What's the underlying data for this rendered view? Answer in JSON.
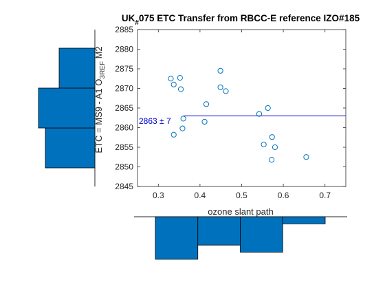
{
  "chart_data": {
    "type": "scatter",
    "title": "UK_#075 ETC Transfer from RBCC-E reference IZO#185",
    "title_parts": {
      "before_sub": "UK",
      "sub": "#",
      "after_sub": "075 ETC Transfer from RBCC-E reference IZO#185"
    },
    "xlabel": "ozone slant path",
    "ylabel": "ETC = MS9 - A1 O3REF M2",
    "ylabel_parts": {
      "before_sub": "ETC =  MS9 - A1 O",
      "sub": "3REF",
      "after_sub": " M2"
    },
    "xlim": [
      0.25,
      0.75
    ],
    "ylim": [
      2845,
      2885
    ],
    "xticks": [
      "0.3",
      "0.4",
      "0.5",
      "0.6",
      "0.7"
    ],
    "yticks": [
      "2845",
      "2850",
      "2855",
      "2860",
      "2865",
      "2870",
      "2875",
      "2880",
      "2885"
    ],
    "grid": false,
    "colors": {
      "marker": "#0072BD",
      "fit_line": "#0000CC",
      "annotation": "#0000CC",
      "hist": "#0072BD",
      "axes": "#262626"
    },
    "series": [
      {
        "points": [
          {
            "x": 0.33,
            "y": 2872.5
          },
          {
            "x": 0.337,
            "y": 2871.0
          },
          {
            "x": 0.352,
            "y": 2872.7
          },
          {
            "x": 0.354,
            "y": 2869.8
          },
          {
            "x": 0.36,
            "y": 2862.3
          },
          {
            "x": 0.358,
            "y": 2859.8
          },
          {
            "x": 0.337,
            "y": 2858.2
          },
          {
            "x": 0.411,
            "y": 2861.5
          },
          {
            "x": 0.415,
            "y": 2866.0
          },
          {
            "x": 0.449,
            "y": 2874.5
          },
          {
            "x": 0.449,
            "y": 2870.3
          },
          {
            "x": 0.462,
            "y": 2869.3
          },
          {
            "x": 0.542,
            "y": 2863.5
          },
          {
            "x": 0.563,
            "y": 2865.0
          },
          {
            "x": 0.553,
            "y": 2855.7
          },
          {
            "x": 0.573,
            "y": 2857.6
          },
          {
            "x": 0.58,
            "y": 2855.0
          },
          {
            "x": 0.572,
            "y": 2851.8
          },
          {
            "x": 0.655,
            "y": 2852.5
          }
        ]
      }
    ],
    "fit_line": {
      "y": 2863,
      "x_from": 0.36,
      "x_to": 0.75
    },
    "annotation": "2863 ± 7",
    "y_histogram": {
      "bins": [
        {
          "from": 2850,
          "to": 2860,
          "count": 3.6
        },
        {
          "from": 2860,
          "to": 2870,
          "count": 4.1
        },
        {
          "from": 2870,
          "to": 2880,
          "count": 2.6
        }
      ],
      "max": 4.2
    },
    "x_histogram": {
      "bins": [
        {
          "from": 0.3,
          "to": 0.4,
          "count": 6
        },
        {
          "from": 0.4,
          "to": 0.5,
          "count": 4
        },
        {
          "from": 0.5,
          "to": 0.6,
          "count": 5
        },
        {
          "from": 0.6,
          "to": 0.7,
          "count": 1
        }
      ],
      "max": 6
    }
  }
}
